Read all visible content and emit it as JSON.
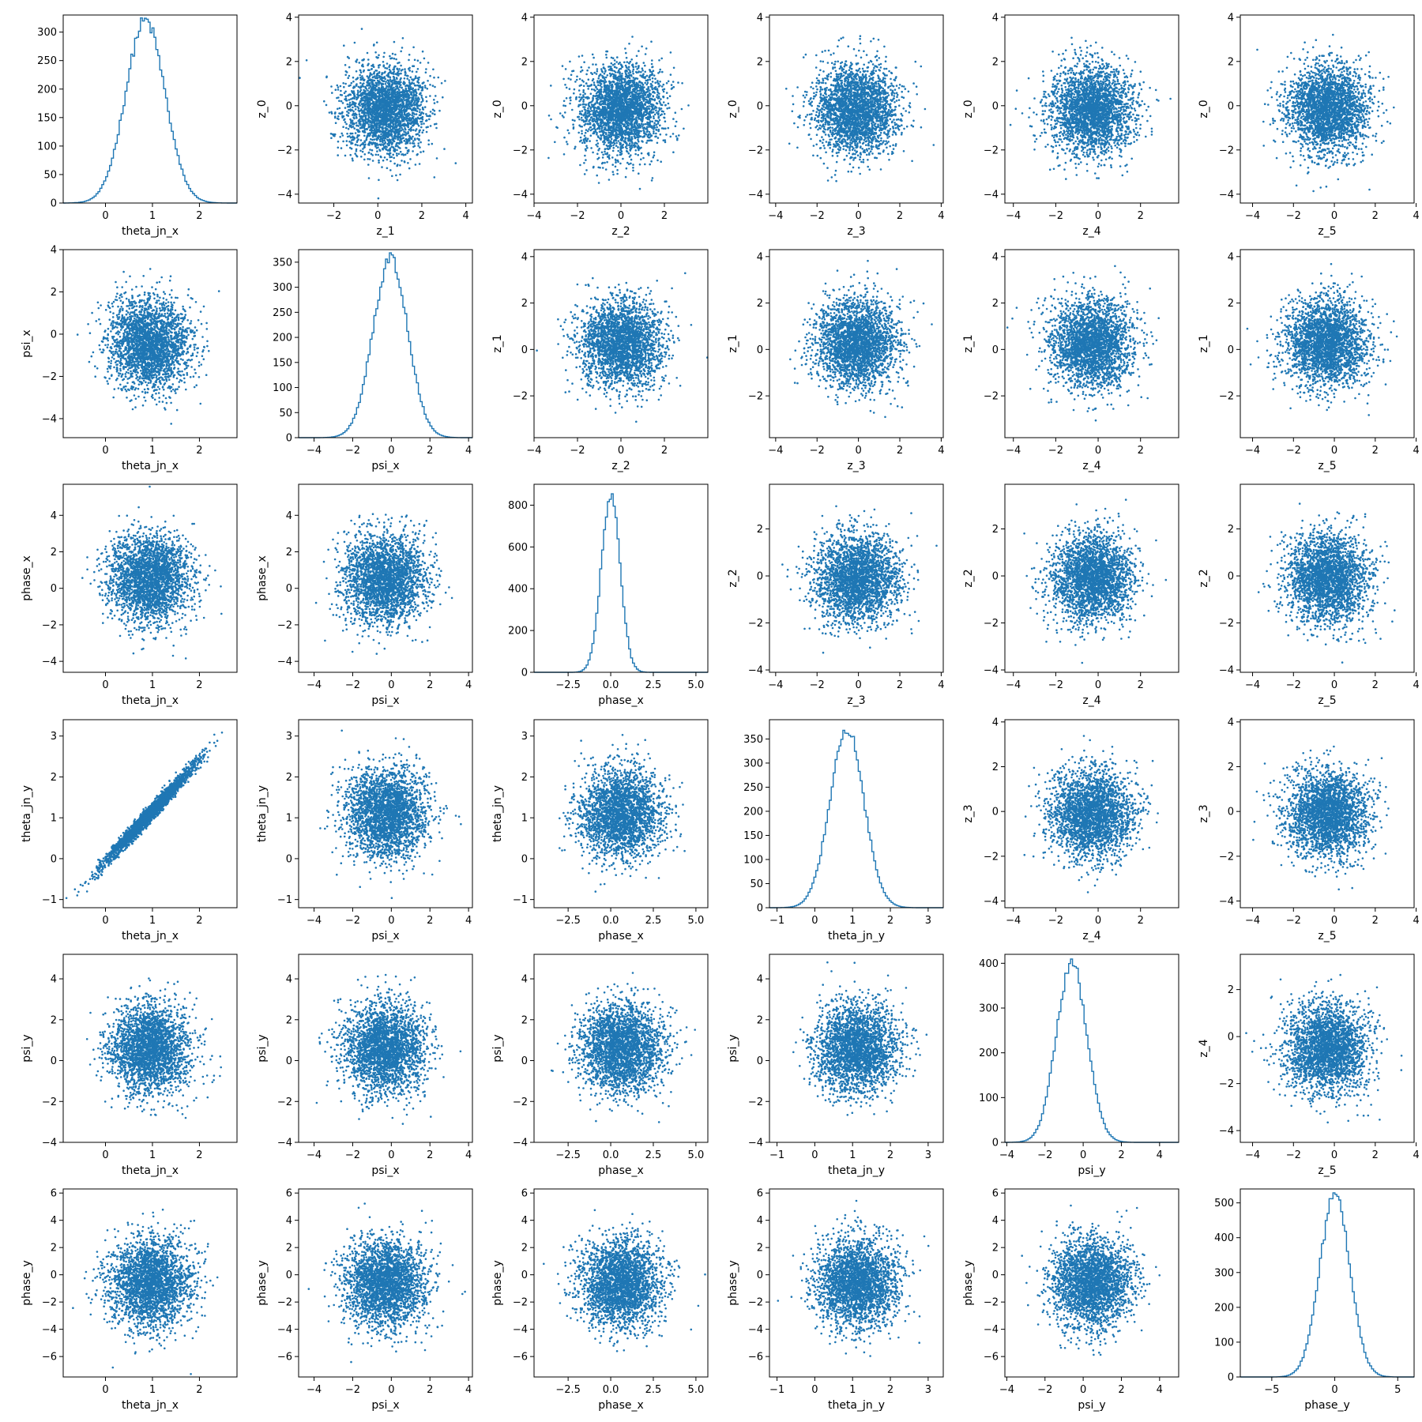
{
  "chart_data": {
    "type": "scatter",
    "layout": "pairplot-6x6",
    "color": "#1f77b4",
    "grid": false,
    "rows": [
      {
        "hist": {
          "xlabel": "theta_jn_x",
          "xlim": [
            -0.9,
            2.8
          ],
          "ylim": [
            0,
            330
          ],
          "xticks": [
            0,
            1,
            2
          ],
          "yticks": [
            0,
            50,
            100,
            150,
            200,
            250,
            300
          ],
          "mean": 0.85,
          "sd": 0.42,
          "peak": 320
        },
        "scatters": [
          {
            "xlabel": "z_1",
            "ylabel": "z_0",
            "xlim": [
              -3.6,
              4.3
            ],
            "ylim": [
              -4.4,
              4.1
            ],
            "xticks": [
              -2,
              0,
              2,
              4
            ],
            "yticks": [
              -4,
              -2,
              0,
              2,
              4
            ]
          },
          {
            "xlabel": "z_2",
            "ylabel": "z_0",
            "xlim": [
              -4.0,
              4.0
            ],
            "ylim": [
              -4.4,
              4.1
            ],
            "xticks": [
              -4,
              -2,
              0,
              2
            ],
            "yticks": [
              -4,
              -2,
              0,
              2,
              4
            ]
          },
          {
            "xlabel": "z_3",
            "ylabel": "z_0",
            "xlim": [
              -4.3,
              4.1
            ],
            "ylim": [
              -4.4,
              4.1
            ],
            "xticks": [
              -4,
              -2,
              0,
              2,
              4
            ],
            "yticks": [
              -4,
              -2,
              0,
              2,
              4
            ]
          },
          {
            "xlabel": "z_4",
            "ylabel": "z_0",
            "xlim": [
              -4.4,
              3.8
            ],
            "ylim": [
              -4.4,
              4.1
            ],
            "xticks": [
              -4,
              -2,
              0,
              2
            ],
            "yticks": [
              -4,
              -2,
              0,
              2,
              4
            ]
          },
          {
            "xlabel": "z_5",
            "ylabel": "z_0",
            "xlim": [
              -4.6,
              3.9
            ],
            "ylim": [
              -4.4,
              4.1
            ],
            "xticks": [
              -4,
              -2,
              0,
              2,
              4
            ],
            "yticks": [
              -4,
              -2,
              0,
              2,
              4
            ]
          }
        ]
      },
      {
        "hist": {
          "xlabel": "psi_x",
          "xlim": [
            -4.8,
            4.2
          ],
          "ylim": [
            0,
            375
          ],
          "xticks": [
            -4,
            -2,
            0,
            2,
            4
          ],
          "yticks": [
            0,
            50,
            100,
            150,
            200,
            250,
            300,
            350
          ],
          "mean": -0.05,
          "sd": 0.9,
          "peak": 355
        },
        "scatters": [
          {
            "xlabel": "theta_jn_x",
            "ylabel": "psi_x",
            "xlim": [
              -0.9,
              2.8
            ],
            "ylim": [
              -4.9,
              4.0
            ],
            "xticks": [
              0,
              1,
              2
            ],
            "yticks": [
              -4,
              -2,
              0,
              2,
              4
            ]
          },
          {
            "xlabel": "z_2",
            "ylabel": "z_1",
            "xlim": [
              -4.0,
              4.0
            ],
            "ylim": [
              -3.8,
              4.3
            ],
            "xticks": [
              -4,
              -2,
              0,
              2
            ],
            "yticks": [
              -2,
              0,
              2,
              4
            ]
          },
          {
            "xlabel": "z_3",
            "ylabel": "z_1",
            "xlim": [
              -4.3,
              4.1
            ],
            "ylim": [
              -3.8,
              4.3
            ],
            "xticks": [
              -4,
              -2,
              0,
              2,
              4
            ],
            "yticks": [
              -2,
              0,
              2,
              4
            ]
          },
          {
            "xlabel": "z_4",
            "ylabel": "z_1",
            "xlim": [
              -4.4,
              3.8
            ],
            "ylim": [
              -3.8,
              4.3
            ],
            "xticks": [
              -4,
              -2,
              0,
              2
            ],
            "yticks": [
              -2,
              0,
              2,
              4
            ]
          },
          {
            "xlabel": "z_5",
            "ylabel": "z_1",
            "xlim": [
              -4.6,
              3.9
            ],
            "ylim": [
              -3.8,
              4.3
            ],
            "xticks": [
              -4,
              -2,
              0,
              2,
              4
            ],
            "yticks": [
              -2,
              0,
              2,
              4
            ]
          }
        ]
      },
      {
        "hist": {
          "xlabel": "phase_x",
          "xlim": [
            -4.5,
            5.7
          ],
          "ylim": [
            0,
            900
          ],
          "xticks": [
            -2.5,
            0.0,
            2.5,
            5.0
          ],
          "yticks": [
            0,
            200,
            400,
            600,
            800
          ],
          "mean": 0.0,
          "sd": 0.55,
          "peak": 850
        },
        "scatters": [
          {
            "xlabel": "theta_jn_x",
            "ylabel": "phase_x",
            "xlim": [
              -0.9,
              2.8
            ],
            "ylim": [
              -4.6,
              5.7
            ],
            "xticks": [
              0,
              1,
              2
            ],
            "yticks": [
              -4,
              -2,
              0,
              2,
              4
            ]
          },
          {
            "xlabel": "psi_x",
            "ylabel": "phase_x",
            "xlim": [
              -4.8,
              4.2
            ],
            "ylim": [
              -4.6,
              5.7
            ],
            "xticks": [
              -4,
              -2,
              0,
              2,
              4
            ],
            "yticks": [
              -4,
              -2,
              0,
              2,
              4
            ]
          },
          {
            "xlabel": "z_3",
            "ylabel": "z_2",
            "xlim": [
              -4.3,
              4.1
            ],
            "ylim": [
              -4.1,
              3.9
            ],
            "xticks": [
              -4,
              -2,
              0,
              2,
              4
            ],
            "yticks": [
              -4,
              -2,
              0,
              2
            ]
          },
          {
            "xlabel": "z_4",
            "ylabel": "z_2",
            "xlim": [
              -4.4,
              3.8
            ],
            "ylim": [
              -4.1,
              3.9
            ],
            "xticks": [
              -4,
              -2,
              0,
              2
            ],
            "yticks": [
              -4,
              -2,
              0,
              2
            ]
          },
          {
            "xlabel": "z_5",
            "ylabel": "z_2",
            "xlim": [
              -4.6,
              3.9
            ],
            "ylim": [
              -4.1,
              3.9
            ],
            "xticks": [
              -4,
              -2,
              0,
              2,
              4
            ],
            "yticks": [
              -4,
              -2,
              0,
              2
            ]
          }
        ]
      },
      {
        "hist": {
          "xlabel": "theta_jn_y",
          "xlim": [
            -1.2,
            3.4
          ],
          "ylim": [
            0,
            390
          ],
          "xticks": [
            -1,
            0,
            1,
            2,
            3
          ],
          "yticks": [
            0,
            50,
            100,
            150,
            200,
            250,
            300,
            350
          ],
          "mean": 0.85,
          "sd": 0.45,
          "peak": 370
        },
        "scatters": [
          {
            "xlabel": "theta_jn_x",
            "ylabel": "theta_jn_y",
            "xlim": [
              -0.9,
              2.8
            ],
            "ylim": [
              -1.2,
              3.4
            ],
            "xticks": [
              0,
              1,
              2
            ],
            "yticks": [
              -1,
              0,
              1,
              2,
              3
            ],
            "correlated": true
          },
          {
            "xlabel": "psi_x",
            "ylabel": "theta_jn_y",
            "xlim": [
              -4.8,
              4.2
            ],
            "ylim": [
              -1.2,
              3.4
            ],
            "xticks": [
              -4,
              -2,
              0,
              2,
              4
            ],
            "yticks": [
              -1,
              0,
              1,
              2,
              3
            ]
          },
          {
            "xlabel": "phase_x",
            "ylabel": "theta_jn_y",
            "xlim": [
              -4.5,
              5.7
            ],
            "ylim": [
              -1.2,
              3.4
            ],
            "xticks": [
              -2.5,
              0.0,
              2.5,
              5.0
            ],
            "yticks": [
              -1,
              0,
              1,
              2,
              3
            ]
          },
          {
            "xlabel": "z_4",
            "ylabel": "z_3",
            "xlim": [
              -4.4,
              3.8
            ],
            "ylim": [
              -4.3,
              4.1
            ],
            "xticks": [
              -4,
              -2,
              0,
              2
            ],
            "yticks": [
              -4,
              -2,
              0,
              2,
              4
            ]
          },
          {
            "xlabel": "z_5",
            "ylabel": "z_3",
            "xlim": [
              -4.6,
              3.9
            ],
            "ylim": [
              -4.3,
              4.1
            ],
            "xticks": [
              -4,
              -2,
              0,
              2,
              4
            ],
            "yticks": [
              -4,
              -2,
              0,
              2,
              4
            ]
          }
        ]
      },
      {
        "hist": {
          "xlabel": "psi_y",
          "xlim": [
            -4.1,
            5.0
          ],
          "ylim": [
            0,
            420
          ],
          "xticks": [
            -4,
            -2,
            0,
            2,
            4
          ],
          "yticks": [
            0,
            100,
            200,
            300,
            400
          ],
          "mean": -0.6,
          "sd": 0.8,
          "peak": 400
        },
        "scatters": [
          {
            "xlabel": "theta_jn_x",
            "ylabel": "psi_y",
            "xlim": [
              -0.9,
              2.8
            ],
            "ylim": [
              -4.0,
              5.2
            ],
            "xticks": [
              0,
              1,
              2
            ],
            "yticks": [
              -4,
              -2,
              0,
              2,
              4
            ]
          },
          {
            "xlabel": "psi_x",
            "ylabel": "psi_y",
            "xlim": [
              -4.8,
              4.2
            ],
            "ylim": [
              -4.0,
              5.2
            ],
            "xticks": [
              -4,
              -2,
              0,
              2,
              4
            ],
            "yticks": [
              -4,
              -2,
              0,
              2,
              4
            ]
          },
          {
            "xlabel": "phase_x",
            "ylabel": "psi_y",
            "xlim": [
              -4.5,
              5.7
            ],
            "ylim": [
              -4.0,
              5.2
            ],
            "xticks": [
              -2.5,
              0.0,
              2.5,
              5.0
            ],
            "yticks": [
              -4,
              -2,
              0,
              2,
              4
            ]
          },
          {
            "xlabel": "theta_jn_y",
            "ylabel": "psi_y",
            "xlim": [
              -1.2,
              3.4
            ],
            "ylim": [
              -4.0,
              5.2
            ],
            "xticks": [
              -1,
              0,
              1,
              2,
              3
            ],
            "yticks": [
              -4,
              -2,
              0,
              2,
              4
            ]
          },
          {
            "xlabel": "z_5",
            "ylabel": "z_4",
            "xlim": [
              -4.6,
              3.9
            ],
            "ylim": [
              -4.5,
              3.5
            ],
            "xticks": [
              -4,
              -2,
              0,
              2,
              4
            ],
            "yticks": [
              -4,
              -2,
              0,
              2
            ]
          }
        ]
      },
      {
        "hist": {
          "xlabel": "phase_y",
          "xlim": [
            -7.5,
            6.3
          ],
          "ylim": [
            0,
            540
          ],
          "xticks": [
            -5,
            0,
            5
          ],
          "yticks": [
            0,
            100,
            200,
            300,
            400,
            500
          ],
          "mean": 0.0,
          "sd": 1.2,
          "peak": 520
        },
        "scatters": [
          {
            "xlabel": "theta_jn_x",
            "ylabel": "phase_y",
            "xlim": [
              -0.9,
              2.8
            ],
            "ylim": [
              -7.5,
              6.3
            ],
            "xticks": [
              0,
              1,
              2
            ],
            "yticks": [
              -6,
              -4,
              -2,
              0,
              2,
              4,
              6
            ]
          },
          {
            "xlabel": "psi_x",
            "ylabel": "phase_y",
            "xlim": [
              -4.8,
              4.2
            ],
            "ylim": [
              -7.5,
              6.3
            ],
            "xticks": [
              -4,
              -2,
              0,
              2,
              4
            ],
            "yticks": [
              -6,
              -4,
              -2,
              0,
              2,
              4,
              6
            ]
          },
          {
            "xlabel": "phase_x",
            "ylabel": "phase_y",
            "xlim": [
              -4.5,
              5.7
            ],
            "ylim": [
              -7.5,
              6.3
            ],
            "xticks": [
              -2.5,
              0.0,
              2.5,
              5.0
            ],
            "yticks": [
              -6,
              -4,
              -2,
              0,
              2,
              4,
              6
            ]
          },
          {
            "xlabel": "theta_jn_y",
            "ylabel": "phase_y",
            "xlim": [
              -1.2,
              3.4
            ],
            "ylim": [
              -7.5,
              6.3
            ],
            "xticks": [
              -1,
              0,
              1,
              2,
              3
            ],
            "yticks": [
              -6,
              -4,
              -2,
              0,
              2,
              4,
              6
            ]
          },
          {
            "xlabel": "psi_y",
            "ylabel": "phase_y",
            "xlim": [
              -4.1,
              5.0
            ],
            "ylim": [
              -7.5,
              6.3
            ],
            "xticks": [
              -4,
              -2,
              0,
              2,
              4
            ],
            "yticks": [
              -6,
              -4,
              -2,
              0,
              2,
              4,
              6
            ]
          }
        ]
      }
    ]
  }
}
